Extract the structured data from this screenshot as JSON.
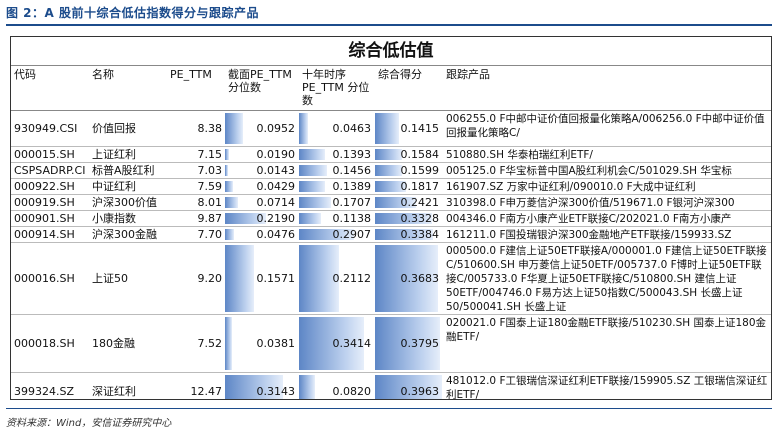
{
  "figure": {
    "title": "图 2：A 股前十综合低估指数得分与跟踪产品",
    "source": "资料来源：Wind，安信证券研究中心"
  },
  "table": {
    "title": "综合低估值",
    "headers": {
      "code": "代码",
      "name": "名称",
      "pe": "PE_TTM",
      "pe_cs": "截面PE_TTM 分位数",
      "pe_ts": "十年时序 PE_TTM 分位数",
      "score": "综合得分",
      "products": "跟踪产品"
    },
    "rows": [
      {
        "code": "930949.CSI",
        "name": "价值回报",
        "pe": "8.38",
        "pe_cs": "0.0952",
        "pe_ts": "0.0463",
        "score": "0.1415",
        "products": "006255.0 F中邮中证价值回报量化策略A/006256.0 F中邮中证价值回报量化策略C/"
      },
      {
        "code": "000015.SH",
        "name": "上证红利",
        "pe": "7.15",
        "pe_cs": "0.0190",
        "pe_ts": "0.1393",
        "score": "0.1584",
        "products": "510880.SH 华泰柏瑞红利ETF/"
      },
      {
        "code": "CSPSADRP.CI",
        "name": "标普A股红利",
        "pe": "7.03",
        "pe_cs": "0.0143",
        "pe_ts": "0.1456",
        "score": "0.1599",
        "products": "005125.0 F华宝标普中国A股红利机会C/501029.SH 华宝标"
      },
      {
        "code": "000922.SH",
        "name": "中证红利",
        "pe": "7.59",
        "pe_cs": "0.0429",
        "pe_ts": "0.1389",
        "score": "0.1817",
        "products": "161907.SZ 万家中证红利/090010.0 F大成中证红利"
      },
      {
        "code": "000919.SH",
        "name": "沪深300价值",
        "pe": "8.01",
        "pe_cs": "0.0714",
        "pe_ts": "0.1707",
        "score": "0.2421",
        "products": "310398.0 F申万菱信沪深300价值/519671.0 F银河沪深300"
      },
      {
        "code": "000901.SH",
        "name": "小康指数",
        "pe": "9.87",
        "pe_cs": "0.2190",
        "pe_ts": "0.1138",
        "score": "0.3328",
        "products": "004346.0 F南方小康产业ETF联接C/202021.0 F南方小康产"
      },
      {
        "code": "000914.SH",
        "name": "沪深300金融",
        "pe": "7.70",
        "pe_cs": "0.0476",
        "pe_ts": "0.2907",
        "score": "0.3384",
        "products": "161211.0 F国投瑞银沪深300金融地产ETF联接/159933.SZ"
      },
      {
        "code": "000016.SH",
        "name": "上证50",
        "pe": "9.20",
        "pe_cs": "0.1571",
        "pe_ts": "0.2112",
        "score": "0.3683",
        "products": "000500.0 F建信上证50ETF联接A/000001.0 F建信上证50ETF联接C/510600.SH 申万菱信上证50ETF/005737.0 F博时上证50ETF联接C/005733.0 F华夏上证50ETF联接C/510800.SH 建信上证50ETF/004746.0 F易方达上证50指数C/500043.SH 长盛上证50/500041.SH 长盛上证"
      },
      {
        "code": "000018.SH",
        "name": "180金融",
        "pe": "7.52",
        "pe_cs": "0.0381",
        "pe_ts": "0.3414",
        "score": "0.3795",
        "products": "020021.0 F国泰上证180金融ETF联接/510230.SH 国泰上证180金融ETF/"
      },
      {
        "code": "399324.SZ",
        "name": "深证红利",
        "pe": "12.47",
        "pe_cs": "0.3143",
        "pe_ts": "0.0820",
        "score": "0.3963",
        "products": "481012.0 F工银瑞信深证红利ETF联接/159905.SZ 工银瑞信深证红利ETF/"
      }
    ]
  },
  "colors": {
    "bar": "#5d86c6",
    "title": "#1c4c8c"
  }
}
